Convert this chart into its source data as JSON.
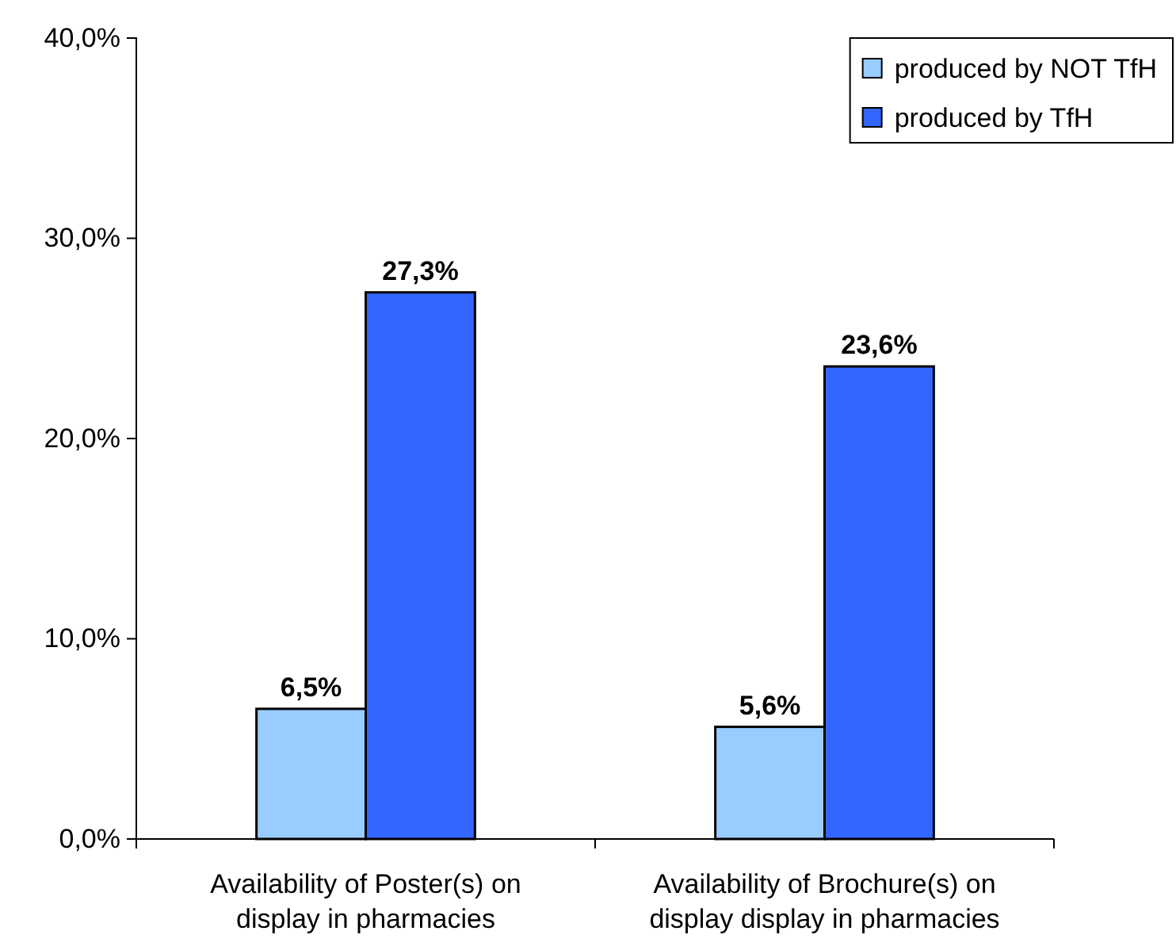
{
  "chart_data": {
    "type": "bar",
    "categories": [
      "Availability of Poster(s) on display in pharmacies",
      "Availability of Brochure(s) on display display in pharmacies"
    ],
    "series": [
      {
        "name": "produced by NOT TfH",
        "color": "#99ccff",
        "values": [
          6.5,
          5.6
        ],
        "value_labels": [
          "6,5%",
          "5,6%"
        ]
      },
      {
        "name": "produced by TfH",
        "color": "#3366ff",
        "values": [
          27.3,
          23.6
        ],
        "value_labels": [
          "27,3%",
          "23,6%"
        ]
      }
    ],
    "ylim": [
      0,
      40
    ],
    "yticks": [
      {
        "value": 0,
        "label": "0,0%"
      },
      {
        "value": 10,
        "label": "10,0%"
      },
      {
        "value": 20,
        "label": "20,0%"
      },
      {
        "value": 30,
        "label": "30,0%"
      },
      {
        "value": 40,
        "label": "40,0%"
      }
    ],
    "legend": "top right"
  }
}
